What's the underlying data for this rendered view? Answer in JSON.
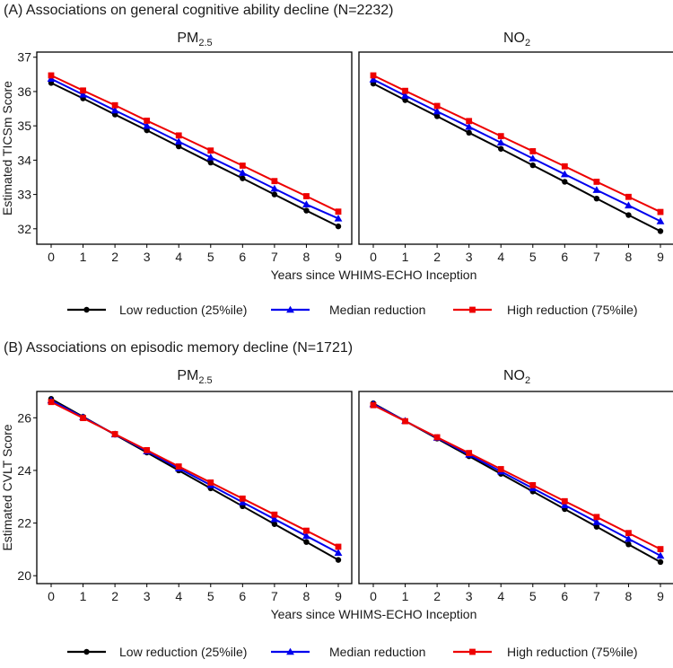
{
  "colors": {
    "low": "#000000",
    "median": "#0000ee",
    "high": "#ee0000",
    "frame": "#000000",
    "grid": "#ffffff"
  },
  "legend": [
    {
      "key": "low",
      "label": "Low reduction (25%ile)",
      "marker": "circle"
    },
    {
      "key": "median",
      "label": "Median reduction",
      "marker": "triangle"
    },
    {
      "key": "high",
      "label": "High reduction (75%ile)",
      "marker": "square"
    }
  ],
  "chart_data": [
    {
      "type": "line",
      "section_title": "(A) Associations on general cognitive ability decline (N=2232)",
      "ylabel": "Estimated TICSm Score",
      "xlabel": "Years since WHIMS-ECHO Inception",
      "x": [
        0,
        1,
        2,
        3,
        4,
        5,
        6,
        7,
        8,
        9
      ],
      "xlim": [
        -0.45,
        9.45
      ],
      "ylim": [
        31.55,
        37.15
      ],
      "yticks": [
        32,
        33,
        34,
        35,
        36,
        37
      ],
      "panels": [
        {
          "title_base": "PM",
          "title_sub": "2.5",
          "series": [
            {
              "key": "low",
              "name": "Low reduction (25%ile)",
              "values": [
                36.25,
                35.8,
                35.33,
                34.87,
                34.4,
                33.93,
                33.47,
                33.0,
                32.53,
                32.07
              ]
            },
            {
              "key": "median",
              "name": "Median reduction",
              "values": [
                36.37,
                35.91,
                35.45,
                35.0,
                34.54,
                34.08,
                33.63,
                33.17,
                32.71,
                32.3
              ]
            },
            {
              "key": "high",
              "name": "High reduction (75%ile)",
              "values": [
                36.47,
                36.03,
                35.6,
                35.15,
                34.72,
                34.28,
                33.84,
                33.39,
                32.95,
                32.5
              ]
            }
          ]
        },
        {
          "title_base": "NO",
          "title_sub": "2",
          "series": [
            {
              "key": "low",
              "name": "Low reduction (25%ile)",
              "values": [
                36.23,
                35.75,
                35.28,
                34.8,
                34.33,
                33.85,
                33.37,
                32.88,
                32.4,
                31.93
              ]
            },
            {
              "key": "median",
              "name": "Median reduction",
              "values": [
                36.35,
                35.88,
                35.42,
                34.97,
                34.51,
                34.05,
                33.59,
                33.13,
                32.68,
                32.22
              ]
            },
            {
              "key": "high",
              "name": "High reduction (75%ile)",
              "values": [
                36.47,
                36.02,
                35.58,
                35.14,
                34.7,
                34.26,
                33.82,
                33.37,
                32.93,
                32.49
              ]
            }
          ]
        }
      ]
    },
    {
      "type": "line",
      "section_title": "(B) Associations on episodic memory decline (N=1721)",
      "ylabel": "Estimated CVLT Score",
      "xlabel": "Years since WHIMS-ECHO Inception",
      "x": [
        0,
        1,
        2,
        3,
        4,
        5,
        6,
        7,
        8,
        9
      ],
      "xlim": [
        -0.45,
        9.45
      ],
      "ylim": [
        19.7,
        27.0
      ],
      "yticks": [
        20,
        22,
        24,
        26
      ],
      "panels": [
        {
          "title_base": "PM",
          "title_sub": "2.5",
          "series": [
            {
              "key": "low",
              "name": "Low reduction (25%ile)",
              "values": [
                26.72,
                26.04,
                25.36,
                24.68,
                24.0,
                23.32,
                22.64,
                21.96,
                21.28,
                20.6
              ]
            },
            {
              "key": "median",
              "name": "Median reduction",
              "values": [
                26.66,
                26.02,
                25.37,
                24.73,
                24.08,
                23.44,
                22.79,
                22.15,
                21.51,
                20.87
              ]
            },
            {
              "key": "high",
              "name": "High reduction (75%ile)",
              "values": [
                26.6,
                25.99,
                25.38,
                24.77,
                24.15,
                23.54,
                22.93,
                22.32,
                21.71,
                21.1
              ]
            }
          ]
        },
        {
          "title_base": "NO",
          "title_sub": "2",
          "series": [
            {
              "key": "low",
              "name": "Low reduction (25%ile)",
              "values": [
                26.55,
                25.88,
                25.21,
                24.54,
                23.87,
                23.2,
                22.53,
                21.86,
                21.19,
                20.52
              ]
            },
            {
              "key": "median",
              "name": "Median reduction",
              "values": [
                26.52,
                25.88,
                25.24,
                24.6,
                23.96,
                23.32,
                22.68,
                22.04,
                21.4,
                20.76
              ]
            },
            {
              "key": "high",
              "name": "High reduction (75%ile)",
              "values": [
                26.48,
                25.87,
                25.26,
                24.66,
                24.05,
                23.44,
                22.83,
                22.23,
                21.62,
                21.01
              ]
            }
          ]
        }
      ]
    }
  ]
}
